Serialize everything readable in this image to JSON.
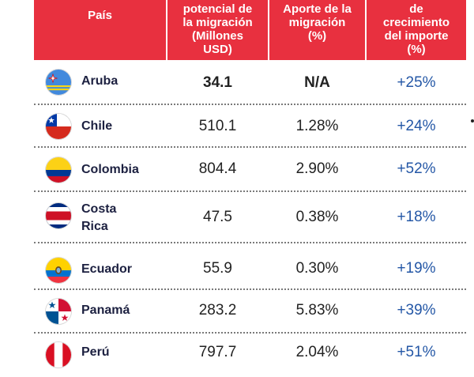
{
  "header": {
    "country": "País",
    "amount": [
      "potencial de",
      "la migración",
      "(Millones",
      "USD)"
    ],
    "share": [
      "Aporte de la",
      "migración",
      "(%)"
    ],
    "growth": [
      "de",
      "crecimiento",
      "del importe",
      "(%)"
    ]
  },
  "rows": [
    {
      "country": [
        "Aruba"
      ],
      "amount": "34.1",
      "share": "N/A",
      "growth": "+25%",
      "flag": "aruba-flag-icon"
    },
    {
      "country": [
        "Chile"
      ],
      "amount": "510.1",
      "share": "1.28%",
      "growth": "+24%",
      "flag": "chile-flag-icon"
    },
    {
      "country": [
        "Colombia"
      ],
      "amount": "804.4",
      "share": "2.90%",
      "growth": "+52%",
      "flag": "colombia-flag-icon"
    },
    {
      "country": [
        "Costa",
        "Rica"
      ],
      "amount": "47.5",
      "share": "0.38%",
      "growth": "+18%",
      "flag": "costa-rica-flag-icon"
    },
    {
      "country": [
        "Ecuador"
      ],
      "amount": "55.9",
      "share": "0.30%",
      "growth": "+19%",
      "flag": "ecuador-flag-icon"
    },
    {
      "country": [
        "Panamá"
      ],
      "amount": "283.2",
      "share": "5.83%",
      "growth": "+39%",
      "flag": "panama-flag-icon"
    },
    {
      "country": [
        "Perú"
      ],
      "amount": "797.7",
      "share": "2.04%",
      "growth": "+51%",
      "flag": "peru-flag-icon"
    }
  ],
  "colors": {
    "header_bg": "#e8303f",
    "growth_text": "#2457a6",
    "country_text": "#1c2040"
  }
}
